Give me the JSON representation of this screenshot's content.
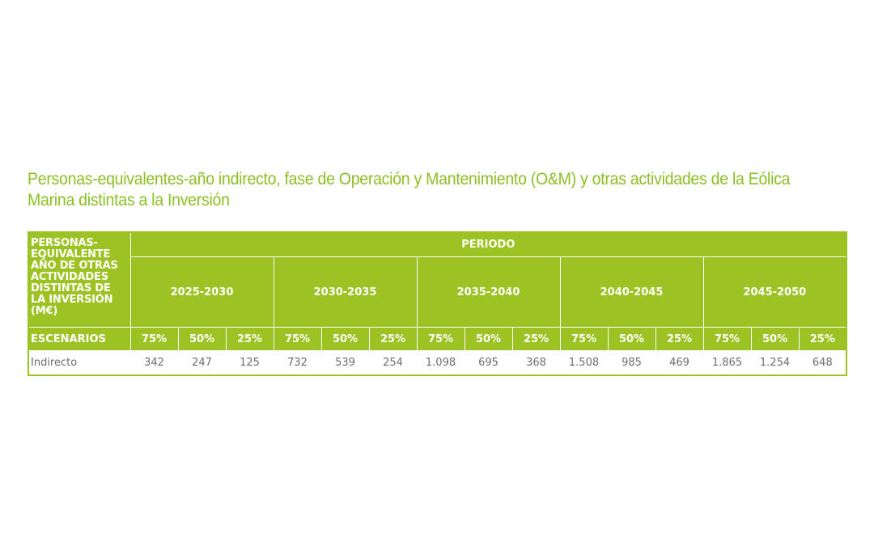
{
  "title": "Personas-equivalentes-año indirecto, fase de Operación y Mantenimiento (O&M) y otras actividades de la Eólica Marina distintas a la Inversión",
  "table": {
    "corner_label": "PERSONAS-EQUIVALENTE AÑO DE OTRAS ACTIVIDADES DISTINTAS DE LA INVERSIÓN (M€)",
    "period_label": "PERIODO",
    "periods": [
      "2025-2030",
      "2030-2035",
      "2035-2040",
      "2040-2045",
      "2045-2050"
    ],
    "scenarios_label": "ESCENARIOS",
    "scenarios": [
      "75%",
      "50%",
      "25%"
    ],
    "rows": [
      {
        "label": "Indirecto",
        "values": [
          "342",
          "247",
          "125",
          "732",
          "539",
          "254",
          "1.098",
          "695",
          "368",
          "1.508",
          "985",
          "469",
          "1.865",
          "1.254",
          "648"
        ]
      }
    ]
  },
  "colors": {
    "accent": "#9cc224",
    "title": "#8dbf27",
    "cell_text": "#6e6e6e"
  }
}
